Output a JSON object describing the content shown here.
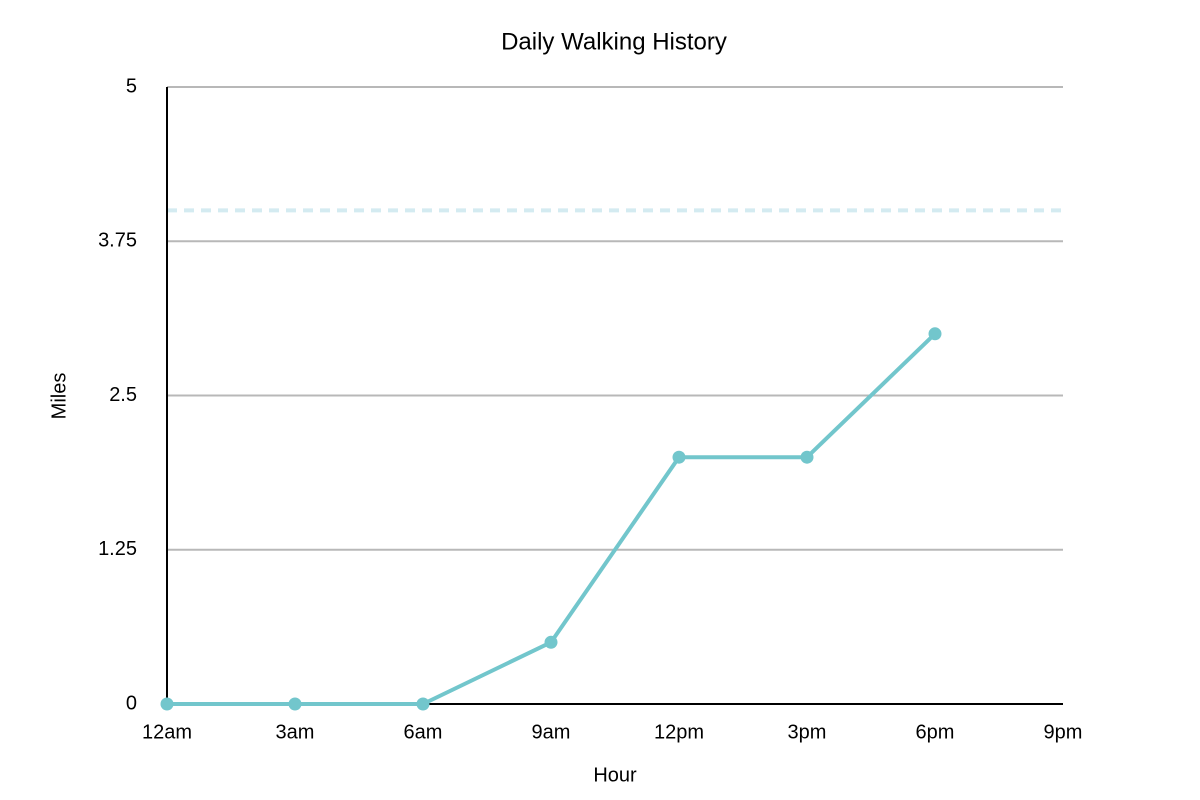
{
  "chart_data": {
    "type": "line",
    "title": "Daily Walking History",
    "x_label": "Hour",
    "y_label": "Miles",
    "categories": [
      "12am",
      "3am",
      "6am",
      "9am",
      "12pm",
      "3pm",
      "6pm",
      "9pm"
    ],
    "values": [
      0,
      0,
      0,
      0.5,
      2,
      2,
      3,
      null
    ],
    "color": "#72c6cc",
    "reference_line": {
      "value": 4,
      "color": "#d4ebf1"
    },
    "ylim": [
      0,
      5
    ],
    "yticks": [
      0,
      1.25,
      2.5,
      3.75,
      5
    ],
    "grid": true
  }
}
